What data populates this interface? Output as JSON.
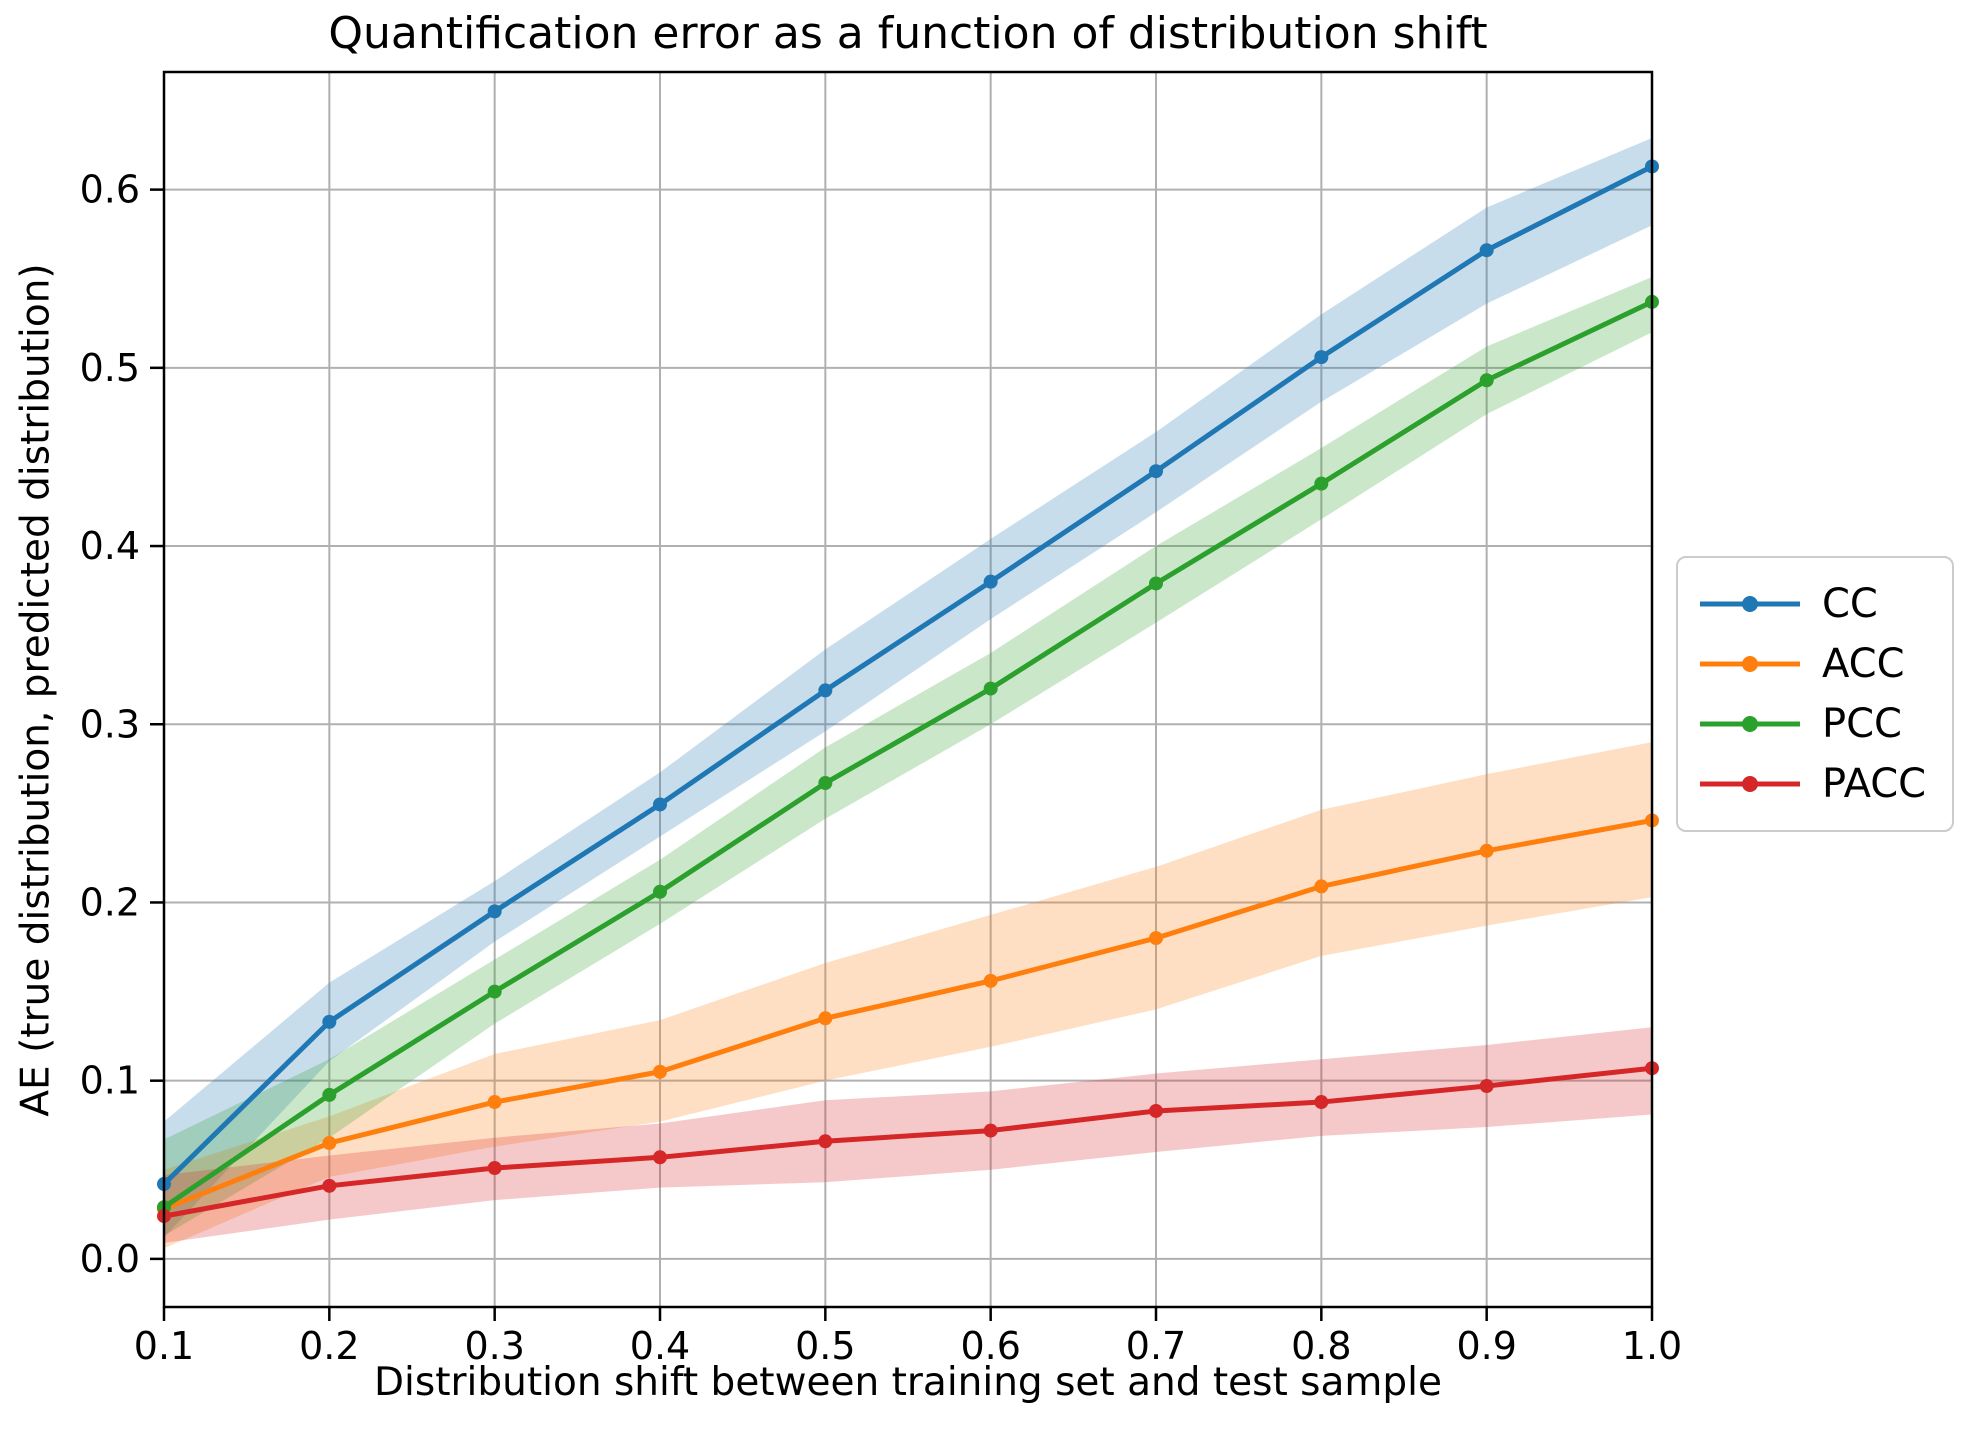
{
  "chart_data": {
    "type": "line",
    "title": "Quantification error as a function of distribution shift",
    "xlabel": "Distribution shift between training set and test sample",
    "ylabel": "AE (true distribution, predicted distribution)",
    "x": [
      0.1,
      0.2,
      0.3,
      0.4,
      0.5,
      0.6,
      0.7,
      0.8,
      0.9,
      1.0
    ],
    "xlim": [
      0.1,
      1.0
    ],
    "ylim": [
      -0.027,
      0.666
    ],
    "xtick_labels": [
      "0.1",
      "0.2",
      "0.3",
      "0.4",
      "0.5",
      "0.6",
      "0.7",
      "0.8",
      "0.9",
      "1.0"
    ],
    "ytick_values": [
      0.0,
      0.1,
      0.2,
      0.3,
      0.4,
      0.5,
      0.6
    ],
    "ytick_labels": [
      "0.0",
      "0.1",
      "0.2",
      "0.3",
      "0.4",
      "0.5",
      "0.6"
    ],
    "grid": true,
    "grid_color": "#b0b0b0",
    "spine_color": "#000000",
    "band_opacity": 0.25,
    "legend_position": "outside right",
    "series": [
      {
        "name": "CC",
        "color": "#1f77b4",
        "values": [
          0.042,
          0.133,
          0.195,
          0.255,
          0.319,
          0.38,
          0.442,
          0.506,
          0.566,
          0.613
        ],
        "band_lower": [
          0.012,
          0.111,
          0.178,
          0.237,
          0.296,
          0.359,
          0.419,
          0.481,
          0.536,
          0.58
        ],
        "band_upper": [
          0.077,
          0.155,
          0.212,
          0.273,
          0.342,
          0.404,
          0.464,
          0.53,
          0.59,
          0.629
        ]
      },
      {
        "name": "ACC",
        "color": "#ff7f0e",
        "values": [
          0.028,
          0.065,
          0.088,
          0.105,
          0.135,
          0.156,
          0.18,
          0.209,
          0.229,
          0.246
        ],
        "band_lower": [
          0.006,
          0.046,
          0.063,
          0.077,
          0.1,
          0.119,
          0.14,
          0.17,
          0.187,
          0.203
        ],
        "band_upper": [
          0.05,
          0.08,
          0.115,
          0.134,
          0.166,
          0.193,
          0.22,
          0.252,
          0.272,
          0.29
        ]
      },
      {
        "name": "PCC",
        "color": "#2ca02c",
        "values": [
          0.029,
          0.092,
          0.15,
          0.206,
          0.267,
          0.32,
          0.379,
          0.435,
          0.493,
          0.537
        ],
        "band_lower": [
          0.013,
          0.068,
          0.132,
          0.188,
          0.247,
          0.3,
          0.357,
          0.415,
          0.474,
          0.52
        ],
        "band_upper": [
          0.067,
          0.112,
          0.168,
          0.224,
          0.287,
          0.34,
          0.4,
          0.455,
          0.512,
          0.551
        ]
      },
      {
        "name": "PACC",
        "color": "#d62728",
        "values": [
          0.024,
          0.041,
          0.051,
          0.057,
          0.066,
          0.072,
          0.083,
          0.088,
          0.097,
          0.107
        ],
        "band_lower": [
          0.009,
          0.022,
          0.033,
          0.04,
          0.043,
          0.05,
          0.06,
          0.069,
          0.074,
          0.081
        ],
        "band_upper": [
          0.047,
          0.058,
          0.068,
          0.076,
          0.089,
          0.094,
          0.104,
          0.112,
          0.12,
          0.13
        ]
      }
    ]
  }
}
